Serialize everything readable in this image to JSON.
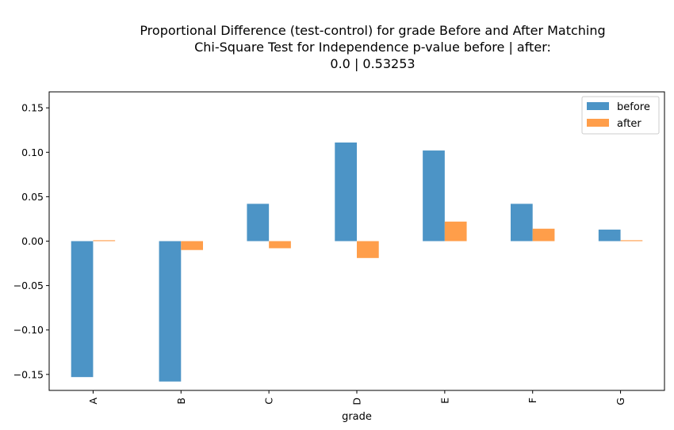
{
  "chart_data": {
    "type": "bar",
    "title_lines": [
      "Proportional Difference (test-control) for grade Before and After Matching",
      "Chi-Square Test for Independence p-value before | after:",
      "0.0 | 0.53253"
    ],
    "xlabel": "grade",
    "ylabel": "",
    "categories": [
      "A",
      "B",
      "C",
      "D",
      "E",
      "F",
      "G"
    ],
    "series": [
      {
        "name": "before",
        "color": "#4c94c6",
        "values": [
          -0.153,
          -0.158,
          0.042,
          0.111,
          0.102,
          0.042,
          0.013
        ]
      },
      {
        "name": "after",
        "color": "#ff9e4a",
        "values": [
          0.001,
          -0.01,
          -0.008,
          -0.019,
          0.022,
          0.014,
          0.001
        ]
      }
    ],
    "ylim": [
      -0.168,
      0.168
    ],
    "yticks": [
      -0.15,
      -0.1,
      -0.05,
      0.0,
      0.05,
      0.1,
      0.15
    ],
    "ytick_labels": [
      "−0.15",
      "−0.10",
      "−0.05",
      "0.00",
      "0.05",
      "0.10",
      "0.15"
    ],
    "legend_position": "top-right",
    "grid": false
  }
}
